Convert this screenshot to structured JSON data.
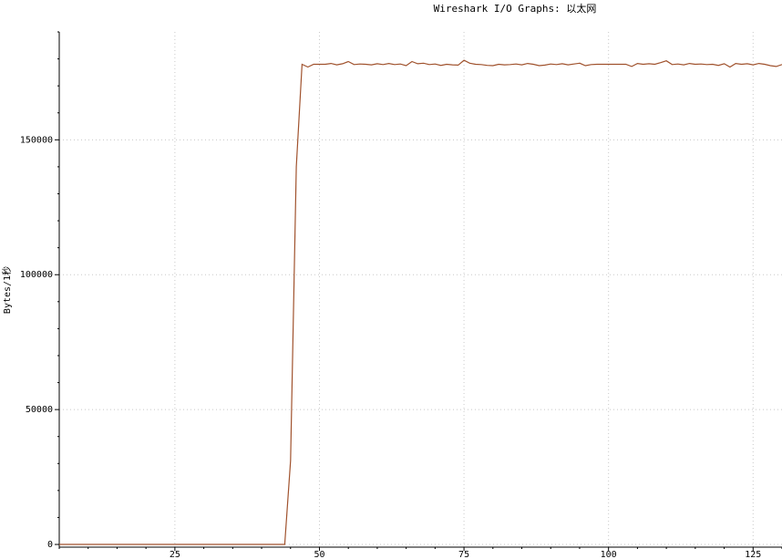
{
  "chart_data": {
    "type": "line",
    "title": "Wireshark I/O Graphs: 以太网",
    "xlabel": "",
    "ylabel": "Bytes/1秒",
    "xlim": [
      5,
      130
    ],
    "ylim": [
      -1000,
      190000
    ],
    "x_ticks": [
      25,
      50,
      75,
      100,
      125
    ],
    "y_ticks": [
      0,
      50000,
      100000,
      150000
    ],
    "grid": true,
    "colors": {
      "series": "#a0522d",
      "grid": "#c8c8c8",
      "axis": "#000000"
    },
    "series": [
      {
        "name": "",
        "x": [
          5,
          10,
          15,
          20,
          25,
          30,
          35,
          40,
          44,
          45,
          46,
          47,
          48,
          49,
          50,
          51,
          52,
          53,
          54,
          55,
          56,
          57,
          58,
          59,
          60,
          61,
          62,
          63,
          64,
          65,
          66,
          67,
          68,
          69,
          70,
          71,
          72,
          73,
          74,
          75,
          76,
          77,
          78,
          79,
          80,
          81,
          82,
          83,
          84,
          85,
          86,
          87,
          88,
          89,
          90,
          91,
          92,
          93,
          94,
          95,
          96,
          97,
          98,
          99,
          100,
          101,
          102,
          103,
          104,
          105,
          106,
          107,
          108,
          109,
          110,
          111,
          112,
          113,
          114,
          115,
          116,
          117,
          118,
          119,
          120,
          121,
          122,
          123,
          124,
          125,
          126,
          127,
          128,
          129,
          130
        ],
        "values": [
          0,
          0,
          0,
          0,
          0,
          0,
          0,
          0,
          0,
          31000,
          140000,
          178000,
          177000,
          178000,
          178000,
          178000,
          178300,
          177800,
          178200,
          179000,
          177900,
          178100,
          178000,
          177800,
          178200,
          177900,
          178300,
          177900,
          178100,
          177500,
          179000,
          178200,
          178400,
          177900,
          178100,
          177600,
          178000,
          177800,
          177700,
          179500,
          178400,
          178000,
          177900,
          177600,
          177500,
          178000,
          177800,
          177900,
          178100,
          177800,
          178300,
          178000,
          177500,
          177700,
          178100,
          177900,
          178200,
          177800,
          178100,
          178400,
          177500,
          177900,
          178000,
          178000,
          178000,
          178000,
          178000,
          178000,
          177200,
          178300,
          178000,
          178200,
          178000,
          178600,
          179300,
          177900,
          178100,
          177800,
          178300,
          178000,
          178100,
          177900,
          178000,
          177600,
          178200,
          177000,
          178300,
          178000,
          178200,
          177800,
          178300,
          178000,
          177500,
          177200,
          177900
        ]
      }
    ]
  }
}
